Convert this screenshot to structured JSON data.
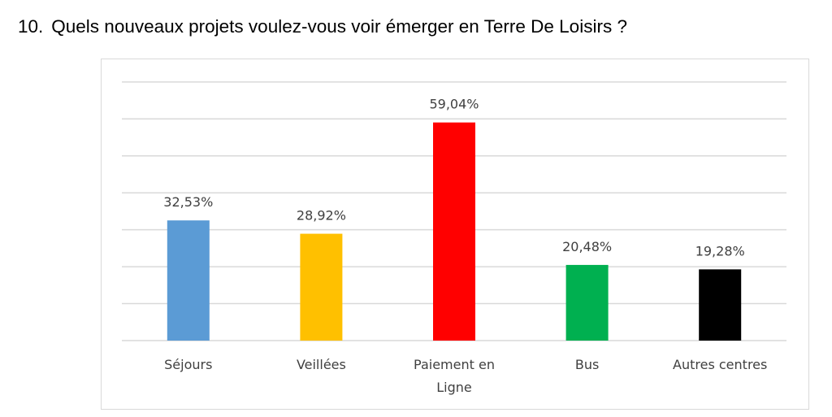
{
  "question": {
    "number": "10.",
    "text": "Quels nouveaux projets voulez-vous voir émerger en Terre De Loisirs ?"
  },
  "chart_data": {
    "type": "bar",
    "categories": [
      [
        "Séjours"
      ],
      [
        "Veillées"
      ],
      [
        "Paiement en",
        "Ligne"
      ],
      [
        "Bus"
      ],
      [
        "Autres centres"
      ]
    ],
    "values": [
      32.53,
      28.92,
      59.04,
      20.48,
      19.28
    ],
    "data_labels": [
      "32,53%",
      "28,92%",
      "59,04%",
      "20,48%",
      "19,28%"
    ],
    "colors": [
      "#5b9bd5",
      "#ffc000",
      "#ff0000",
      "#00b050",
      "#000000"
    ],
    "ylim": [
      0,
      70
    ],
    "gridline_step": 10,
    "grid": true,
    "title": "",
    "xlabel": "",
    "ylabel": ""
  }
}
